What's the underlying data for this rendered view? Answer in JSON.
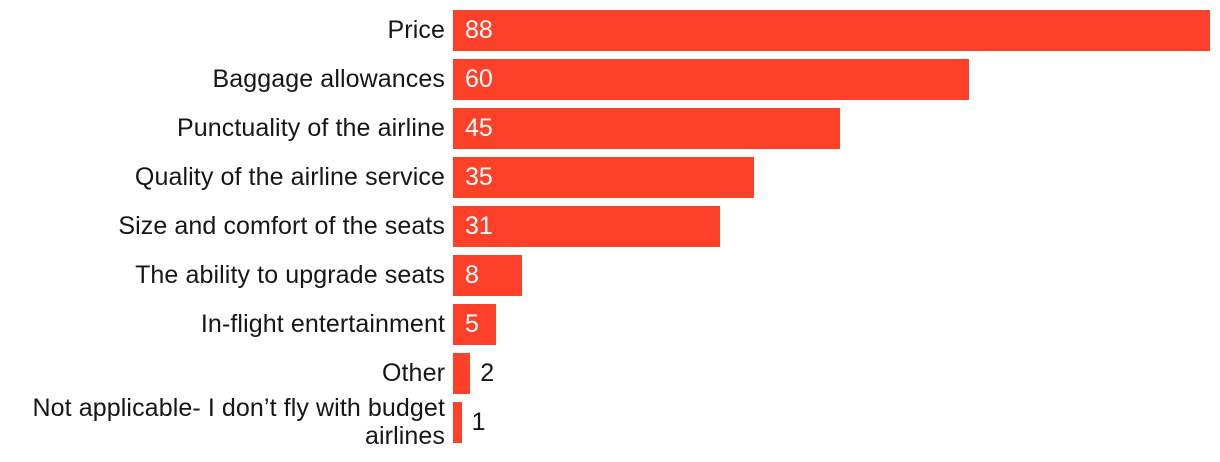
{
  "chart_data": {
    "type": "bar",
    "orientation": "horizontal",
    "title": "",
    "xlabel": "",
    "ylabel": "",
    "xlim": [
      0,
      88
    ],
    "grid": false,
    "legend": false,
    "axes_visible": false,
    "bar_color": "#FD4128",
    "category_label_color": "#161616",
    "value_label_inside_color": "#FFFFFF",
    "value_label_outside_color": "#161616",
    "categories": [
      "Price",
      "Baggage allowances",
      "Punctuality of the airline",
      "Quality of the airline service",
      "Size and comfort of the seats",
      "The ability to upgrade seats",
      "In-flight entertainment",
      "Other",
      "Not applicable- I don’t fly with budget airlines"
    ],
    "values": [
      88,
      60,
      45,
      35,
      31,
      8,
      5,
      2,
      1
    ],
    "value_label_positions": [
      "inside",
      "inside",
      "inside",
      "inside",
      "inside",
      "inside",
      "inside",
      "outside",
      "outside"
    ]
  }
}
